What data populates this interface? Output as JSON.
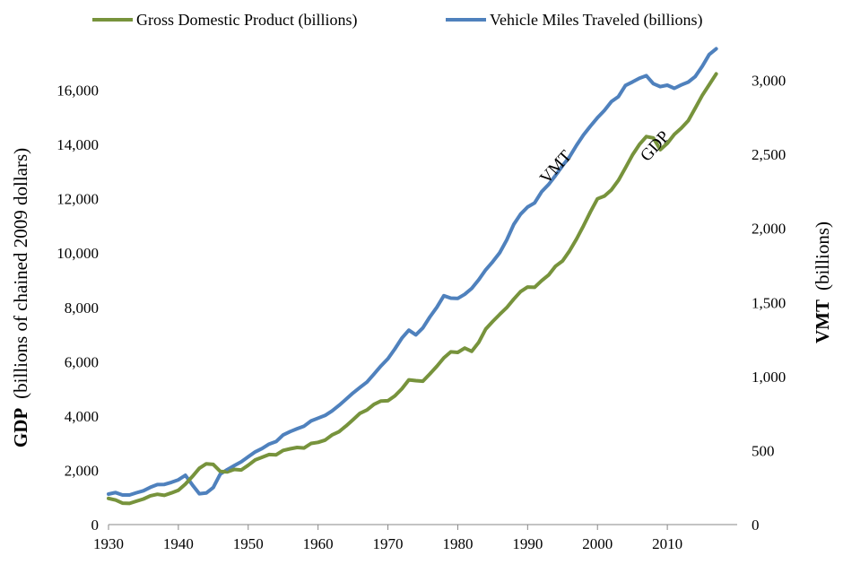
{
  "chart_data": {
    "type": "line",
    "legend_position": "top",
    "grid": false,
    "x_axis": {
      "min": 1930,
      "max": 2020,
      "ticks": [
        1930,
        1940,
        1950,
        1960,
        1970,
        1980,
        1990,
        2000,
        2010
      ]
    },
    "y_left": {
      "title_bold": "GDP",
      "title_rest": "(billions of chained 2009 dollars)",
      "min": 0,
      "max": 18000,
      "ticks": [
        0,
        2000,
        4000,
        6000,
        8000,
        10000,
        12000,
        14000,
        16000
      ],
      "tick_labels": [
        "0",
        "2,000",
        "4,000",
        "6,000",
        "8,000",
        "10,000",
        "12,000",
        "14,000",
        "16,000"
      ]
    },
    "y_right": {
      "title_bold": "VMT",
      "title_rest": "(billions)",
      "min": 0,
      "max": 3000,
      "ticks": [
        0,
        500,
        1000,
        1500,
        2000,
        2500,
        3000
      ],
      "tick_labels": [
        "0",
        "500",
        "1,000",
        "1,500",
        "2,000",
        "2,500",
        "3,000"
      ]
    },
    "series": [
      {
        "name": "Gross Domestic Product (billions)",
        "color": "#77933C",
        "axis": "left",
        "annotation": "GDP",
        "x": [
          1930,
          1931,
          1932,
          1933,
          1934,
          1935,
          1936,
          1937,
          1938,
          1939,
          1940,
          1941,
          1942,
          1943,
          1944,
          1945,
          1946,
          1947,
          1948,
          1949,
          1950,
          1951,
          1952,
          1953,
          1954,
          1955,
          1956,
          1957,
          1958,
          1959,
          1960,
          1961,
          1962,
          1963,
          1964,
          1965,
          1966,
          1967,
          1968,
          1969,
          1970,
          1971,
          1972,
          1973,
          1974,
          1975,
          1976,
          1977,
          1978,
          1979,
          1980,
          1981,
          1982,
          1983,
          1984,
          1985,
          1986,
          1987,
          1988,
          1989,
          1990,
          1991,
          1992,
          1993,
          1994,
          1995,
          1996,
          1997,
          1998,
          1999,
          2000,
          2001,
          2002,
          2003,
          2004,
          2005,
          2006,
          2007,
          2008,
          2009,
          2010,
          2011,
          2012,
          2013,
          2014,
          2015,
          2016,
          2017
        ],
        "values": [
          966,
          904,
          788,
          778,
          862,
          940,
          1060,
          1115,
          1078,
          1165,
          1266,
          1491,
          1771,
          2074,
          2240,
          2217,
          1960,
          1940,
          2030,
          2010,
          2185,
          2380,
          2480,
          2580,
          2570,
          2730,
          2790,
          2840,
          2820,
          2990,
          3030,
          3110,
          3300,
          3420,
          3630,
          3860,
          4100,
          4220,
          4430,
          4550,
          4560,
          4740,
          5000,
          5330,
          5300,
          5280,
          5550,
          5830,
          6140,
          6360,
          6340,
          6500,
          6380,
          6710,
          7200,
          7480,
          7740,
          7990,
          8300,
          8580,
          8750,
          8740,
          8980,
          9190,
          9520,
          9710,
          10080,
          10520,
          11000,
          11520,
          12000,
          12100,
          12330,
          12680,
          13140,
          13610,
          14000,
          14290,
          14240,
          13810,
          14040,
          14370,
          14600,
          14880,
          15340,
          15810,
          16200,
          16600
        ]
      },
      {
        "name": "Vehicle Miles Traveled (billions)",
        "color": "#4F81BD",
        "axis": "right",
        "annotation": "VMT",
        "x": [
          1930,
          1931,
          1932,
          1933,
          1934,
          1935,
          1936,
          1937,
          1938,
          1939,
          1940,
          1941,
          1942,
          1943,
          1944,
          1945,
          1946,
          1947,
          1948,
          1949,
          1950,
          1951,
          1952,
          1953,
          1954,
          1955,
          1956,
          1957,
          1958,
          1959,
          1960,
          1961,
          1962,
          1963,
          1964,
          1965,
          1966,
          1967,
          1968,
          1969,
          1970,
          1971,
          1972,
          1973,
          1974,
          1975,
          1976,
          1977,
          1978,
          1979,
          1980,
          1981,
          1982,
          1983,
          1984,
          1985,
          1986,
          1987,
          1988,
          1989,
          1990,
          1991,
          1992,
          1993,
          1994,
          1995,
          1996,
          1997,
          1998,
          1999,
          2000,
          2001,
          2002,
          2003,
          2004,
          2005,
          2006,
          2007,
          2008,
          2009,
          2010,
          2011,
          2012,
          2013,
          2014,
          2015,
          2016,
          2017
        ],
        "values": [
          206,
          216,
          200,
          200,
          215,
          228,
          252,
          270,
          271,
          285,
          302,
          333,
          268,
          208,
          213,
          250,
          341,
          371,
          398,
          424,
          458,
          491,
          514,
          544,
          561,
          605,
          628,
          647,
          665,
          700,
          719,
          737,
          767,
          805,
          846,
          888,
          926,
          962,
          1016,
          1071,
          1120,
          1186,
          1259,
          1313,
          1281,
          1328,
          1402,
          1467,
          1545,
          1529,
          1527,
          1555,
          1595,
          1653,
          1720,
          1775,
          1835,
          1921,
          2026,
          2096,
          2144,
          2172,
          2247,
          2296,
          2358,
          2423,
          2484,
          2561,
          2631,
          2691,
          2747,
          2797,
          2856,
          2890,
          2965,
          2989,
          3014,
          3031,
          2977,
          2957,
          2967,
          2946,
          2969,
          2988,
          3026,
          3095,
          3174,
          3213
        ]
      }
    ]
  }
}
